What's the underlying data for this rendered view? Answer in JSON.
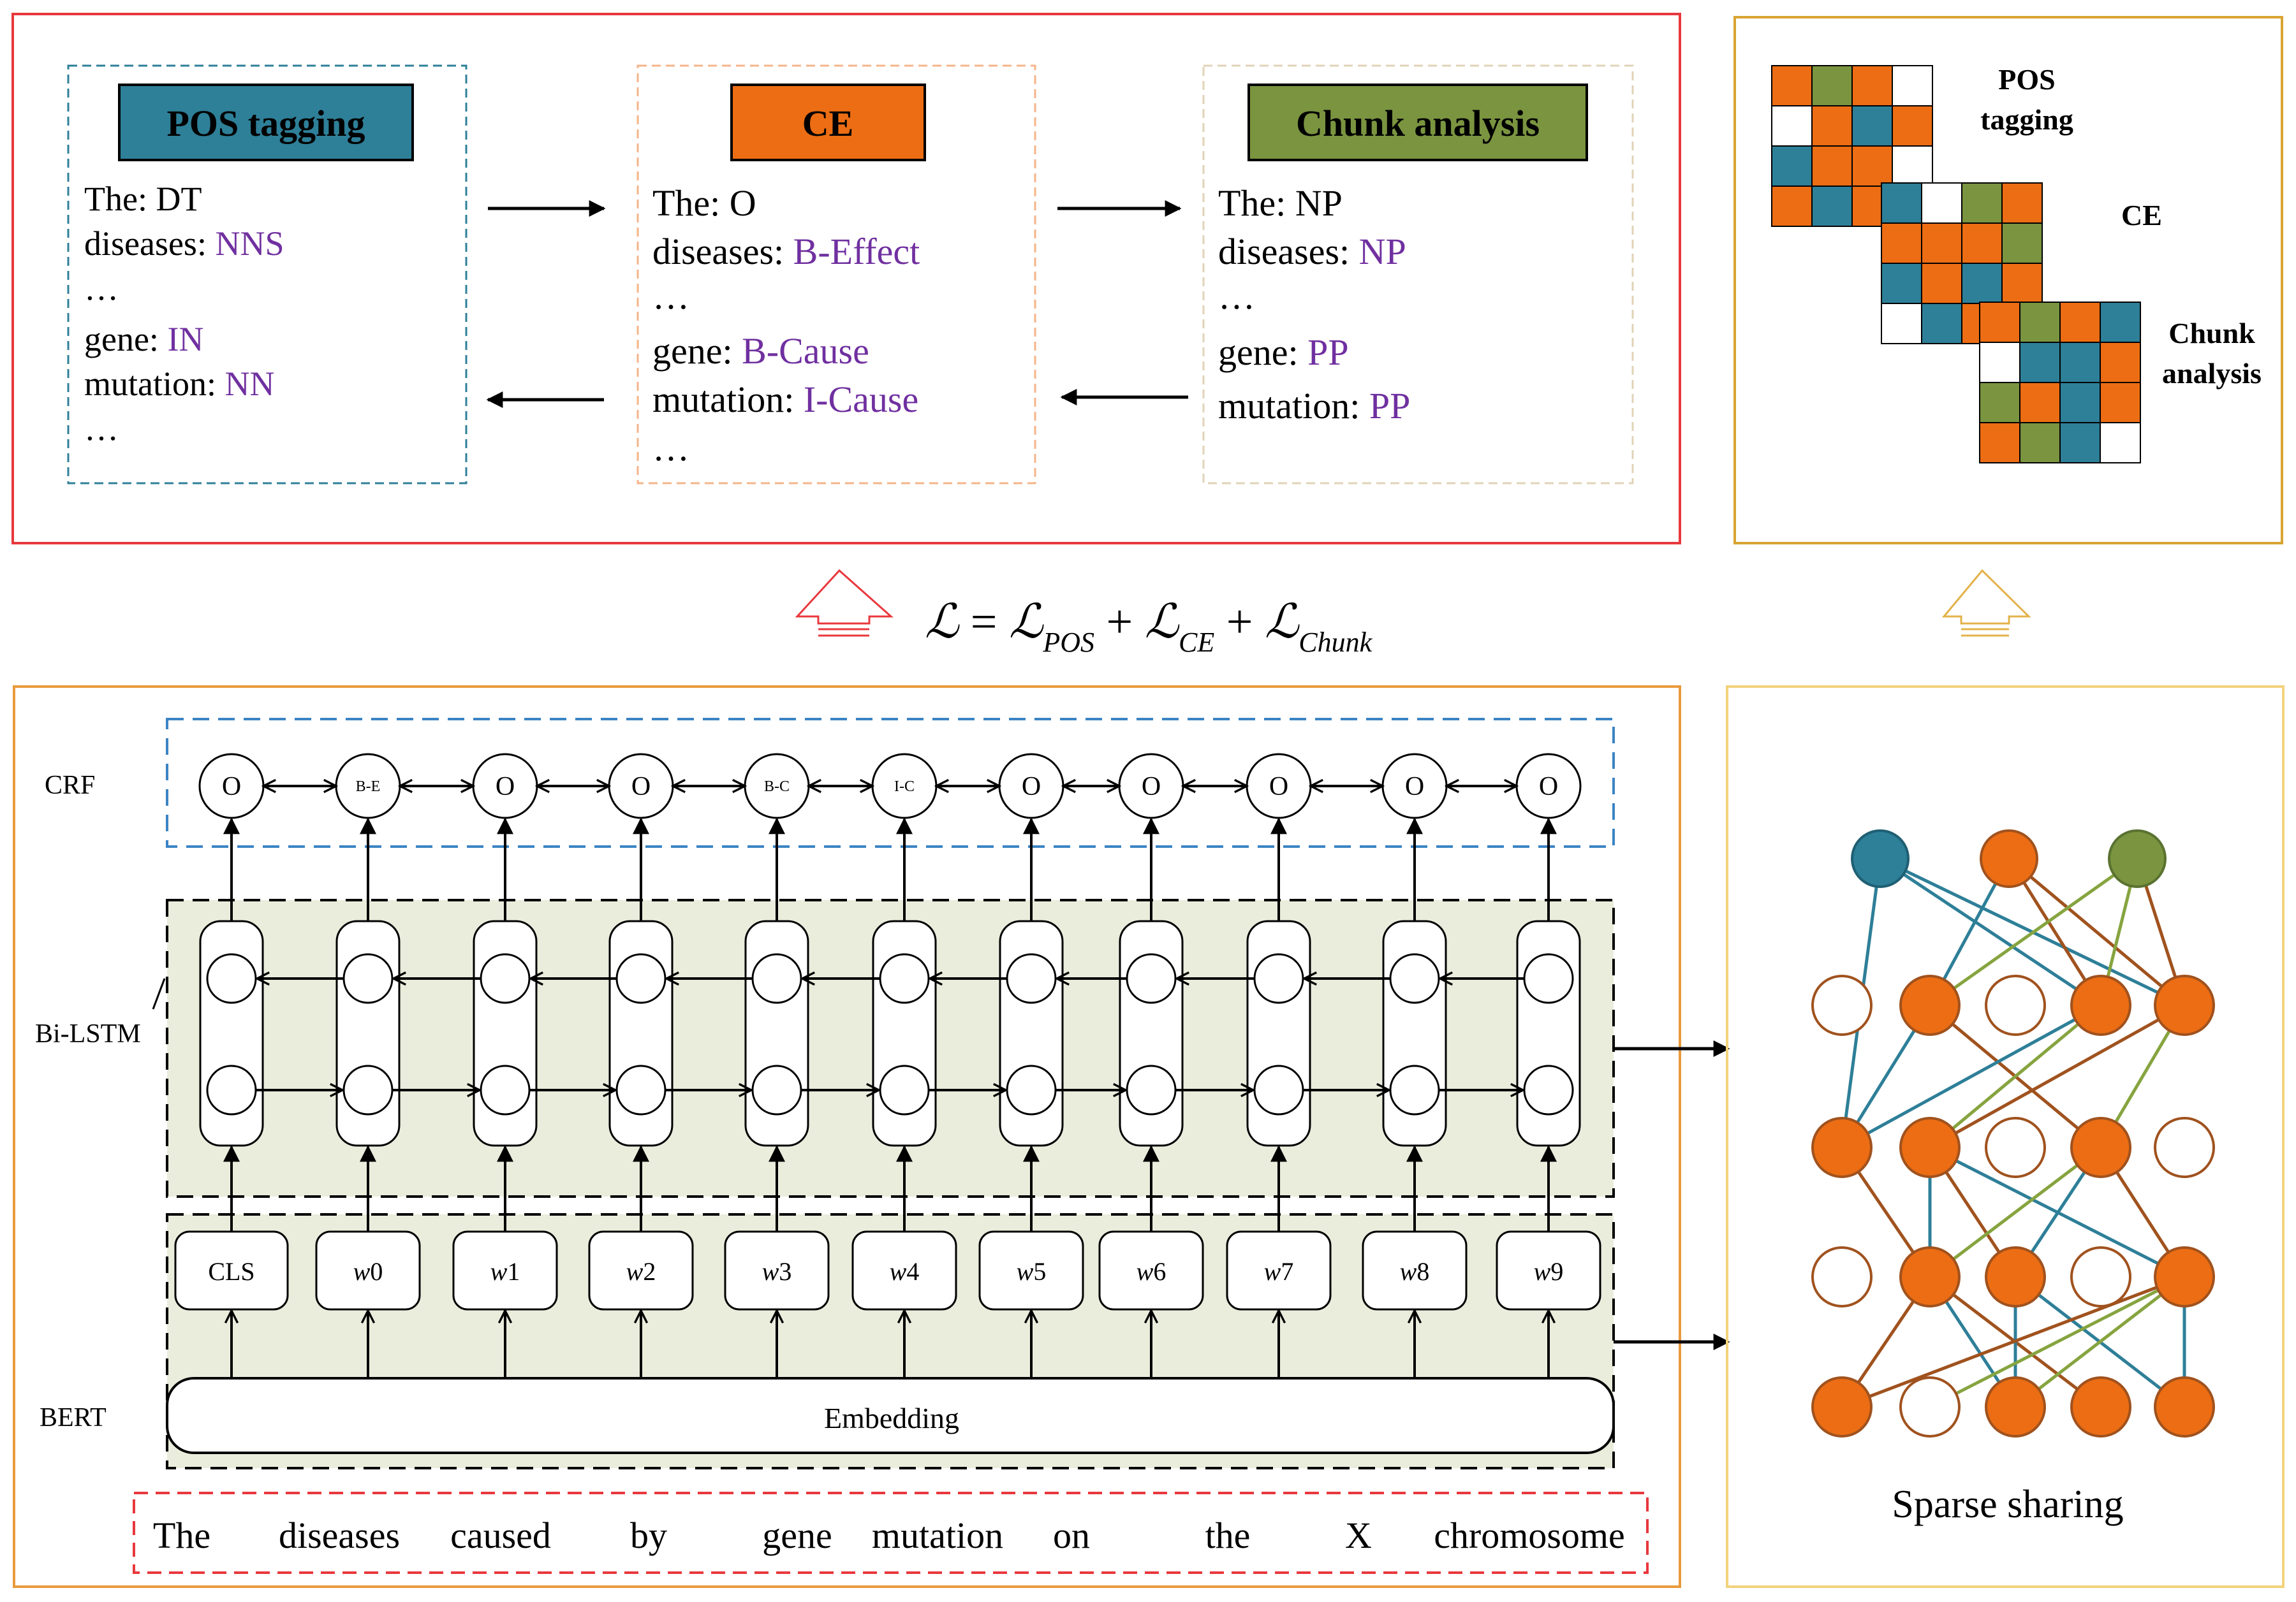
{
  "colors": {
    "teal": "#2e7f98",
    "orange": "#ec6d13",
    "green": "#7a9440",
    "purple": "#7030a0",
    "red_frame": "#e8383d",
    "orange_frame": "#e99a3c",
    "gold_frame": "#d8a432",
    "light_gold_frame": "#f3d27c",
    "light_green_fill": "#eaeddc",
    "blue_dash": "#3b84c4",
    "red_dash": "#e8383d"
  },
  "top_panel": {
    "pos": {
      "title": "POS tagging",
      "lines": [
        {
          "word": "The: ",
          "tag": "DT",
          "tag_colored": false
        },
        {
          "word": "diseases: ",
          "tag": "NNS",
          "tag_colored": true
        },
        {
          "word": "…",
          "tag": "",
          "tag_colored": false
        },
        {
          "word": "gene: ",
          "tag": "IN",
          "tag_colored": true
        },
        {
          "word": "mutation: ",
          "tag": "NN",
          "tag_colored": true
        },
        {
          "word": "…",
          "tag": "",
          "tag_colored": false
        }
      ]
    },
    "ce": {
      "title": "CE",
      "lines": [
        {
          "word": "The: ",
          "tag": "O",
          "tag_colored": false
        },
        {
          "word": "diseases: ",
          "tag": "B-Effect",
          "tag_colored": true
        },
        {
          "word": "…",
          "tag": "",
          "tag_colored": false
        },
        {
          "word": "gene: ",
          "tag": "B-Cause",
          "tag_colored": true
        },
        {
          "word": "mutation: ",
          "tag": "I-Cause",
          "tag_colored": true
        },
        {
          "word": "…",
          "tag": "",
          "tag_colored": false
        }
      ]
    },
    "chunk": {
      "title": "Chunk analysis",
      "lines": [
        {
          "word": "The: ",
          "tag": "NP",
          "tag_colored": false
        },
        {
          "word": "diseases: ",
          "tag": "NP",
          "tag_colored": true
        },
        {
          "word": "…",
          "tag": "",
          "tag_colored": false
        },
        {
          "word": "gene: ",
          "tag": "PP",
          "tag_colored": true
        },
        {
          "word": "mutation: ",
          "tag": "PP",
          "tag_colored": true
        }
      ]
    }
  },
  "matrices_panel": {
    "labels": [
      "POS tagging",
      "CE",
      "Chunk analysis"
    ],
    "grids": [
      [
        [
          "O",
          "G",
          "O",
          "W"
        ],
        [
          "W",
          "O",
          "T",
          "O"
        ],
        [
          "T",
          "O",
          "O",
          "W"
        ],
        [
          "O",
          "T",
          "O",
          "T"
        ]
      ],
      [
        [
          "T",
          "W",
          "G",
          "O"
        ],
        [
          "O",
          "O",
          "O",
          "G"
        ],
        [
          "T",
          "O",
          "T",
          "O"
        ],
        [
          "W",
          "T",
          "O",
          "O"
        ]
      ],
      [
        [
          "O",
          "G",
          "O",
          "T"
        ],
        [
          "W",
          "T",
          "T",
          "O"
        ],
        [
          "G",
          "O",
          "T",
          "O"
        ],
        [
          "O",
          "G",
          "T",
          "W"
        ]
      ]
    ]
  },
  "loss": {
    "L": "ℒ",
    "eq": " = ",
    "plus": " + ",
    "terms": [
      {
        "symbol": "ℒ",
        "sub": "POS"
      },
      {
        "symbol": "ℒ",
        "sub": "CE"
      },
      {
        "symbol": "ℒ",
        "sub": "Chunk"
      }
    ]
  },
  "model": {
    "crf_label": "CRF",
    "bilstm_label": "Bi-LSTM",
    "bert_label": "BERT",
    "crf_tags": [
      "O",
      "B-E",
      "O",
      "O",
      "B-C",
      "I-C",
      "O",
      "O",
      "O",
      "O",
      "O"
    ],
    "tokens": [
      {
        "main": "CLS",
        "sub": ""
      },
      {
        "main": "w",
        "sub": "0"
      },
      {
        "main": "w",
        "sub": "1"
      },
      {
        "main": "w",
        "sub": "2"
      },
      {
        "main": "w",
        "sub": "3"
      },
      {
        "main": "w",
        "sub": "4"
      },
      {
        "main": "w",
        "sub": "5"
      },
      {
        "main": "w",
        "sub": "6"
      },
      {
        "main": "w",
        "sub": "7"
      },
      {
        "main": "w",
        "sub": "8"
      },
      {
        "main": "w",
        "sub": "9"
      }
    ],
    "embedding_label": "Embedding",
    "sentence": [
      "The",
      "diseases",
      "caused",
      "by",
      "gene",
      "mutation",
      "on",
      "the",
      "X",
      "chromosome"
    ]
  },
  "sparse": {
    "label": "Sparse sharing",
    "layers": [
      [
        "T",
        "O",
        "G"
      ],
      [
        "W",
        "O",
        "W",
        "O",
        "O"
      ],
      [
        "O",
        "O",
        "W",
        "O",
        "W"
      ],
      [
        "W",
        "O",
        "O",
        "W",
        "O"
      ],
      [
        "O",
        "W",
        "O",
        "O",
        "O"
      ]
    ]
  }
}
